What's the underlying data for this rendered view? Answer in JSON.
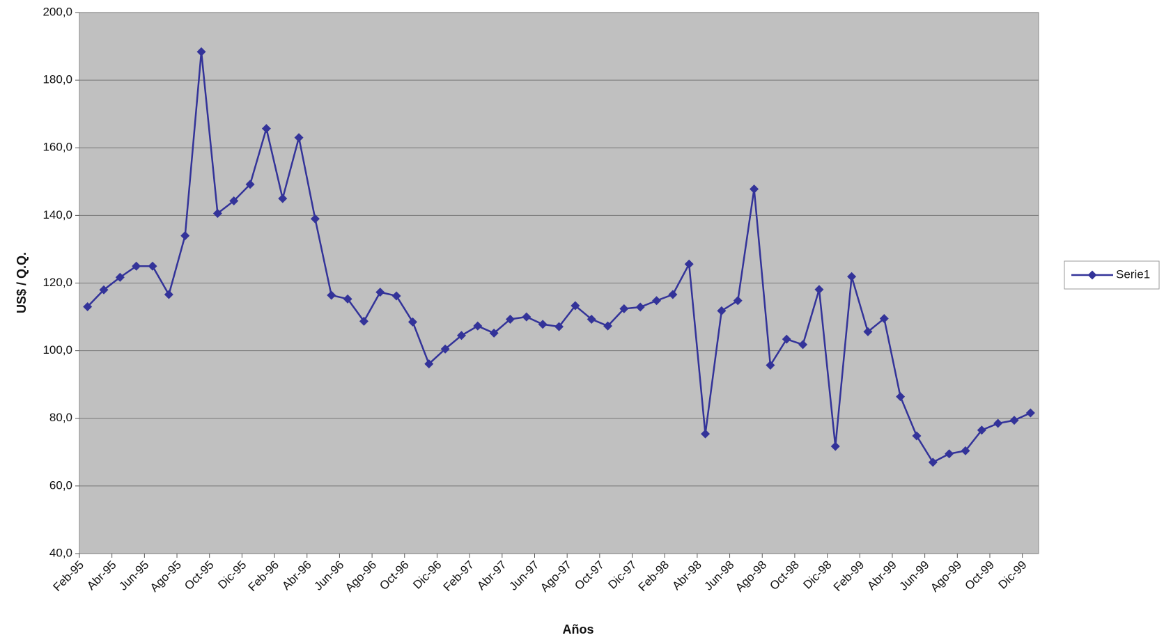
{
  "chart_data": {
    "type": "line",
    "x_label": "Años",
    "y_label": "US$ / Q.Q.",
    "categories": [
      "Feb-95",
      null,
      "Abr-95",
      null,
      "Jun-95",
      null,
      "Ago-95",
      null,
      "Oct-95",
      null,
      "Dic-95",
      null,
      "Feb-96",
      null,
      "Abr-96",
      null,
      "Jun-96",
      null,
      "Ago-96",
      null,
      "Oct-96",
      null,
      "Dic-96",
      null,
      "Feb-97",
      null,
      "Abr-97",
      null,
      "Jun-97",
      null,
      "Ago-97",
      null,
      "Oct-97",
      null,
      "Dic-97",
      null,
      "Feb-98",
      null,
      "Abr-98",
      null,
      "Jun-98",
      null,
      "Ago-98",
      null,
      "Oct-98",
      null,
      "Dic-98",
      null,
      "Feb-99",
      null,
      "Abr-99",
      null,
      "Jun-99",
      null,
      "Ago-99",
      null,
      "Oct-99",
      null,
      "Dic-99"
    ],
    "series": [
      {
        "name": "Serie1",
        "color": "#333399",
        "values": [
          113,
          118,
          121.7,
          125,
          125,
          116.6,
          134,
          188.4,
          140.6,
          144.3,
          149.2,
          165.7,
          145,
          163,
          139,
          116.4,
          115.3,
          108.7,
          117.3,
          116.2,
          108.5,
          96.1,
          100.5,
          104.5,
          107.3,
          105.2,
          109.3,
          110,
          107.8,
          107.1,
          113.3,
          109.3,
          107.3,
          112.4,
          112.9,
          114.8,
          116.6,
          125.6,
          75.4,
          111.8,
          114.8,
          147.8,
          95.7,
          103.4,
          101.8,
          118.1,
          71.7,
          121.9,
          105.6,
          109.5,
          86.4,
          74.8,
          67,
          69.5,
          70.4,
          76.5,
          78.5,
          79.4,
          81.6
        ]
      }
    ],
    "ylim": [
      40,
      200
    ],
    "yticks": [
      {
        "value": 40,
        "label": "40,0"
      },
      {
        "value": 60,
        "label": "60,0"
      },
      {
        "value": 80,
        "label": "80,0"
      },
      {
        "value": 100,
        "label": "100,0"
      },
      {
        "value": 120,
        "label": "120,0"
      },
      {
        "value": 140,
        "label": "140,0"
      },
      {
        "value": 160,
        "label": "160,0"
      },
      {
        "value": 180,
        "label": "180,0"
      },
      {
        "value": 200,
        "label": "200,0"
      }
    ],
    "grid": true,
    "legend": "right"
  }
}
